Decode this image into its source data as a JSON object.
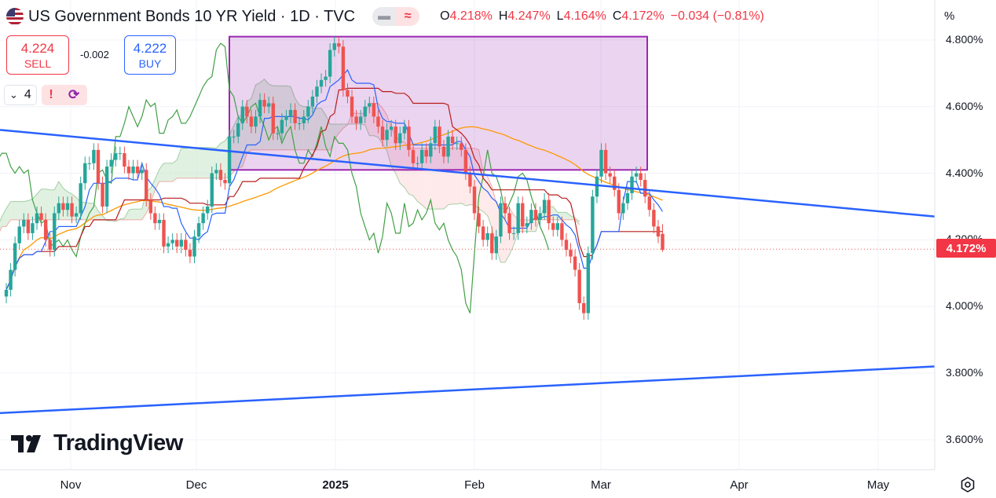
{
  "header": {
    "title": "US Government Bonds 10 YR Yield · 1D · TVC",
    "pill_left_icon": "minus-icon",
    "pill_right_icon": "wave-icon",
    "pill_right_glyph": "≈",
    "open_label": "O",
    "open_value": "4.218%",
    "high_label": "H",
    "high_value": "4.247%",
    "low_label": "L",
    "low_value": "4.164%",
    "close_label": "C",
    "close_value": "4.172%",
    "change": "−0.034 (−0.81%)"
  },
  "trade": {
    "sell_price": "4.224",
    "sell_label": "SELL",
    "spread": "-0.002",
    "buy_price": "4.222",
    "buy_label": "BUY"
  },
  "controls": {
    "collapse_value": "4",
    "collapse_icon": "chevron-down-icon",
    "alert_icon": "exclamation-icon",
    "sync_icon": "sync-icon"
  },
  "axis": {
    "unit": "%",
    "current_price": "4.172%"
  },
  "branding": {
    "logo_text": "TradingView"
  },
  "colors": {
    "up": "#26a69a",
    "down": "#ef5350",
    "kijun": "#b71c1c",
    "tenkan": "#2962ff",
    "chikou": "#43a047",
    "ma200": "#ff9800",
    "trend": "#2962ff",
    "box": "#9c27b0",
    "cloud_bull": "#c8e6c9",
    "cloud_bear": "#fdd8d8"
  },
  "chart_data": {
    "type": "candlestick",
    "symbol": "US Government Bonds 10 YR Yield",
    "interval": "1D",
    "y_unit": "%",
    "ylim": [
      3.51,
      4.92
    ],
    "x_ticks": [
      "Nov",
      "Dec",
      "2025",
      "Feb",
      "Mar",
      "Apr",
      "May"
    ],
    "y_ticks": [
      "4.800%",
      "4.600%",
      "4.400%",
      "4.200%",
      "4.000%",
      "3.800%",
      "3.600%"
    ],
    "last_candle": {
      "open": 4.218,
      "high": 4.247,
      "low": 4.164,
      "close": 4.172
    },
    "closes": [
      4.05,
      4.11,
      4.19,
      4.24,
      4.26,
      4.22,
      4.25,
      4.28,
      4.26,
      4.2,
      4.17,
      4.28,
      4.31,
      4.29,
      4.31,
      4.27,
      4.28,
      4.37,
      4.43,
      4.43,
      4.47,
      4.37,
      4.3,
      4.42,
      4.44,
      4.46,
      4.46,
      4.42,
      4.4,
      4.42,
      4.4,
      4.41,
      4.32,
      4.28,
      4.25,
      4.26,
      4.18,
      4.19,
      4.2,
      4.18,
      4.2,
      4.17,
      4.15,
      4.21,
      4.25,
      4.28,
      4.3,
      4.4,
      4.41,
      4.38,
      4.37,
      4.51,
      4.51,
      4.55,
      4.6,
      4.57,
      4.54,
      4.57,
      4.62,
      4.6,
      4.61,
      4.52,
      4.52,
      4.56,
      4.57,
      4.59,
      4.55,
      4.55,
      4.57,
      4.6,
      4.63,
      4.66,
      4.68,
      4.69,
      4.77,
      4.79,
      4.78,
      4.65,
      4.63,
      4.57,
      4.55,
      4.57,
      4.6,
      4.61,
      4.57,
      4.54,
      4.5,
      4.53,
      4.54,
      4.49,
      4.52,
      4.54,
      4.47,
      4.43,
      4.43,
      4.47,
      4.45,
      4.49,
      4.54,
      4.48,
      4.45,
      4.51,
      4.49,
      4.49,
      4.47,
      4.4,
      4.36,
      4.28,
      4.24,
      4.2,
      4.22,
      4.16,
      4.21,
      4.31,
      4.28,
      4.22,
      4.22,
      4.31,
      4.24,
      4.25,
      4.29,
      4.26,
      4.28,
      4.32,
      4.25,
      4.23,
      4.25,
      4.2,
      4.17,
      4.15,
      4.11,
      4.01,
      3.98,
      4.16,
      4.33,
      4.39,
      4.47,
      4.4,
      4.39,
      4.35,
      4.28,
      4.31,
      4.34,
      4.39,
      4.4,
      4.38,
      4.33,
      4.29,
      4.24,
      4.21,
      4.17
    ],
    "series": [
      {
        "name": "Price",
        "type": "candlestick"
      },
      {
        "name": "Tenkan-sen",
        "type": "line"
      },
      {
        "name": "Kijun-sen",
        "type": "line"
      },
      {
        "name": "Chikou Span",
        "type": "line"
      },
      {
        "name": "Kumo cloud",
        "type": "area"
      },
      {
        "name": "Moving average",
        "type": "line"
      }
    ],
    "annotations": [
      {
        "type": "rectangle",
        "x_range": [
          "Nov",
          "Mar"
        ],
        "y_range": [
          4.41,
          4.81
        ]
      },
      {
        "type": "trendline",
        "from": 4.53,
        "to": 4.27
      },
      {
        "type": "trendline",
        "from": 3.68,
        "to": 3.82
      },
      {
        "type": "horizontal_line",
        "y": 4.172
      }
    ]
  }
}
